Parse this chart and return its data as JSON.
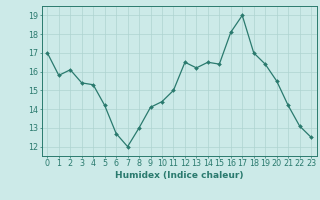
{
  "x": [
    0,
    1,
    2,
    3,
    4,
    5,
    6,
    7,
    8,
    9,
    10,
    11,
    12,
    13,
    14,
    15,
    16,
    17,
    18,
    19,
    20,
    21,
    22,
    23
  ],
  "y": [
    17.0,
    15.8,
    16.1,
    15.4,
    15.3,
    14.2,
    12.7,
    12.0,
    13.0,
    14.1,
    14.4,
    15.0,
    16.5,
    16.2,
    16.5,
    16.4,
    18.1,
    19.0,
    17.0,
    16.4,
    15.5,
    14.2,
    13.1,
    12.5
  ],
  "line_color": "#2a7a6e",
  "marker": "D",
  "marker_size": 2.0,
  "bg_color": "#cceae8",
  "grid_color": "#aed4d0",
  "xlabel": "Humidex (Indice chaleur)",
  "xlim": [
    -0.5,
    23.5
  ],
  "ylim": [
    11.5,
    19.5
  ],
  "yticks": [
    12,
    13,
    14,
    15,
    16,
    17,
    18,
    19
  ],
  "xticks": [
    0,
    1,
    2,
    3,
    4,
    5,
    6,
    7,
    8,
    9,
    10,
    11,
    12,
    13,
    14,
    15,
    16,
    17,
    18,
    19,
    20,
    21,
    22,
    23
  ],
  "tick_color": "#2a7a6e",
  "axis_color": "#2a7a6e",
  "label_color": "#2a7a6e",
  "xlabel_fontsize": 6.5,
  "tick_fontsize": 5.8,
  "linewidth": 0.9
}
